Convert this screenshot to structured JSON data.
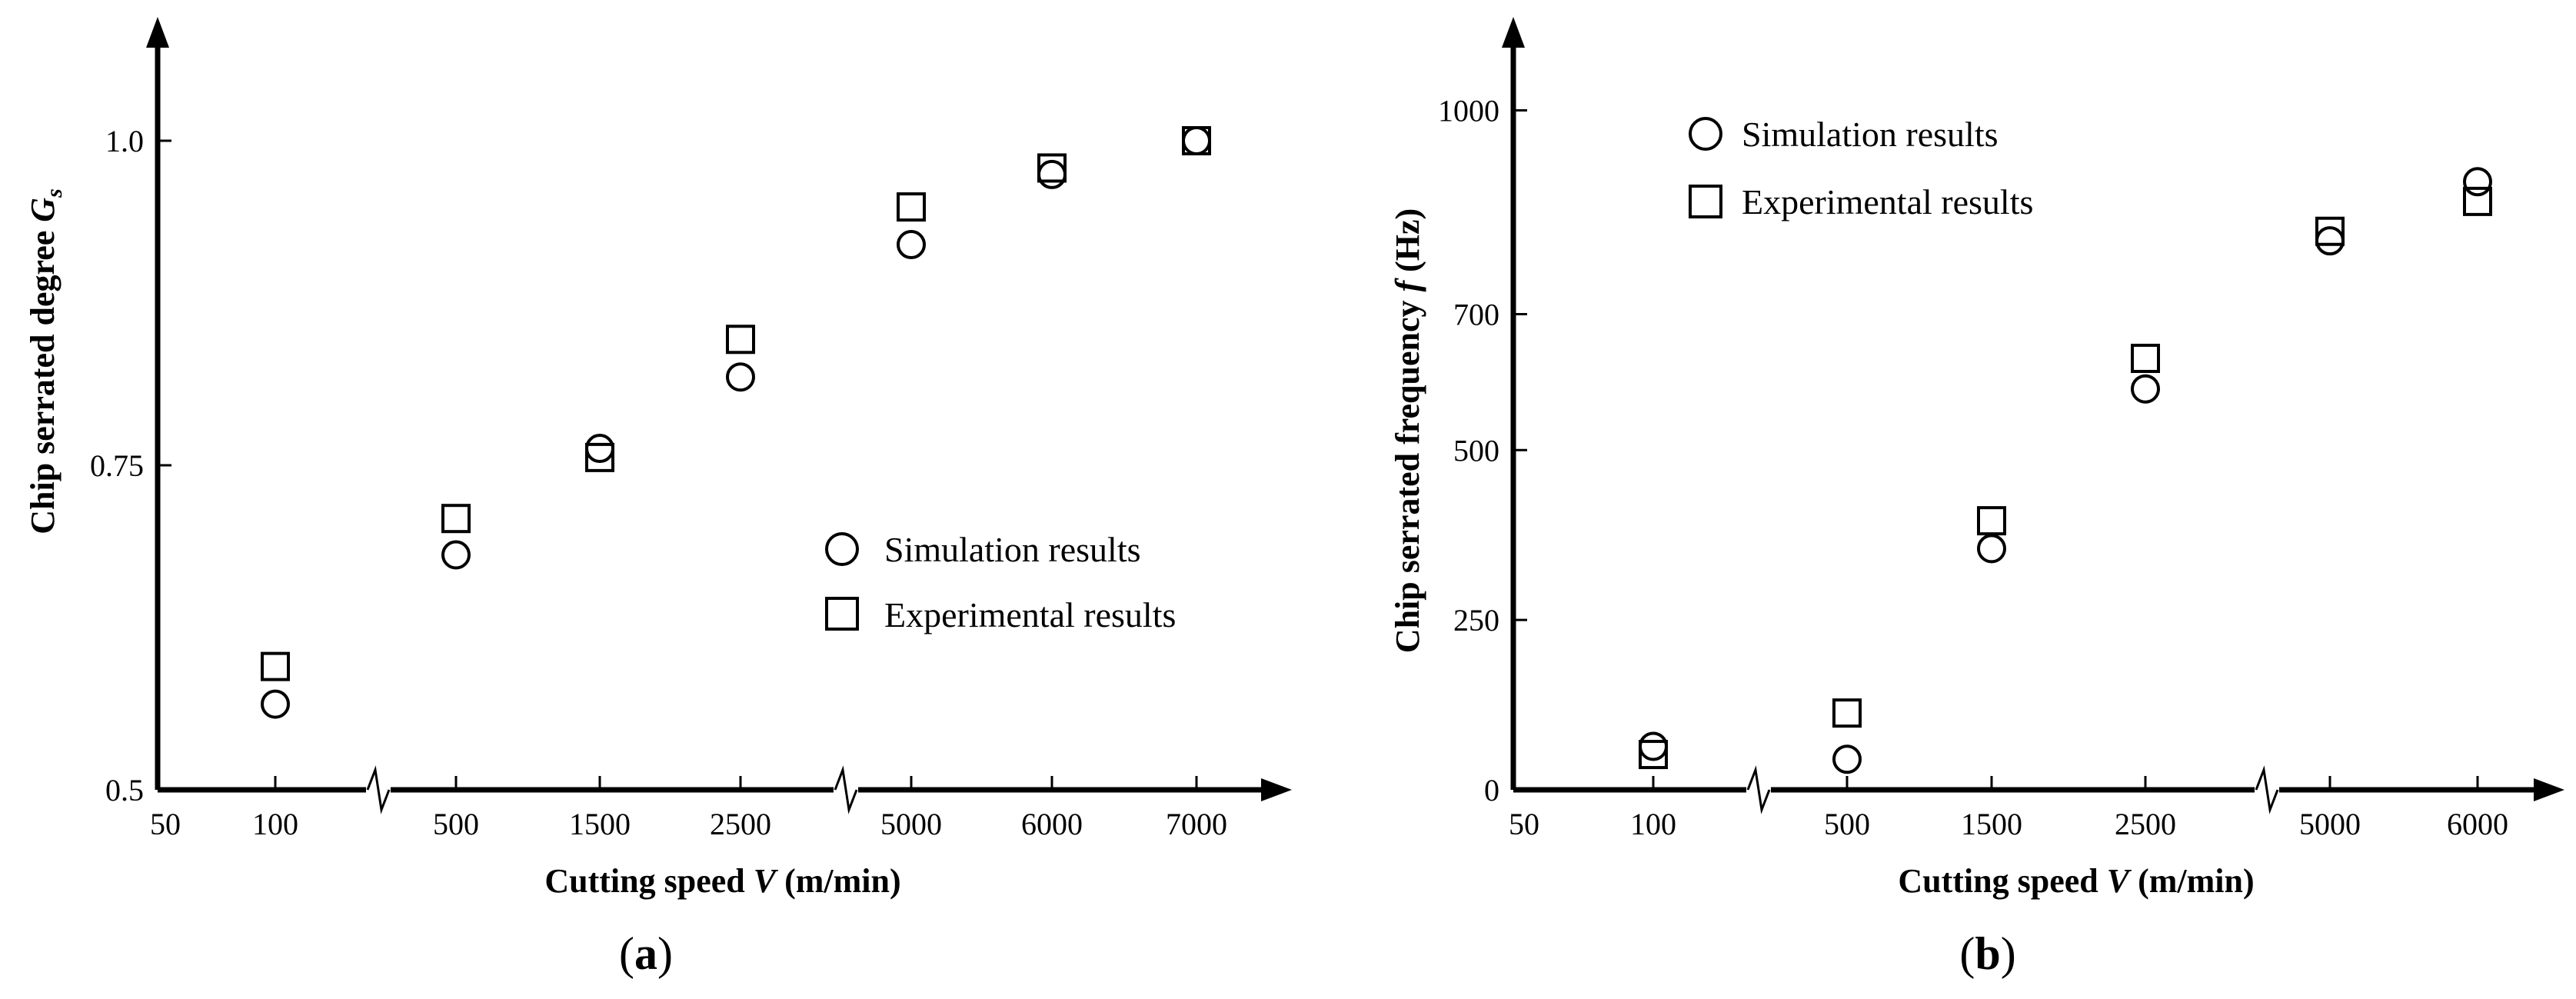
{
  "chart_data": [
    {
      "type": "scatter",
      "panel": "a",
      "xlabel": "Cutting speed",
      "xlabel_var": "V",
      "xlabel_unit": "(m/min)",
      "ylabel": "Chip serrated degree",
      "ylabel_var": "G",
      "ylabel_sub": "s",
      "x_ticks": [
        "50",
        "100",
        "500",
        "1500",
        "2500",
        "5000",
        "6000",
        "7000"
      ],
      "x_breaks_after": [
        "100",
        "2500"
      ],
      "y_ticks": [
        "0.5",
        "0.75",
        "1.0"
      ],
      "ylim": [
        0.5,
        1.05
      ],
      "legend_position": "center-right",
      "series": [
        {
          "name": "Simulation results",
          "marker": "circle",
          "x": [
            "100",
            "500",
            "1500",
            "2500",
            "5000",
            "6000",
            "7000"
          ],
          "values": [
            0.566,
            0.681,
            0.763,
            0.818,
            0.92,
            0.974,
            1.0
          ]
        },
        {
          "name": "Experimental results",
          "marker": "square",
          "x": [
            "100",
            "500",
            "1500",
            "2500",
            "5000",
            "6000",
            "7000"
          ],
          "values": [
            0.595,
            0.709,
            0.756,
            0.847,
            0.949,
            0.979,
            1.0
          ]
        }
      ]
    },
    {
      "type": "scatter",
      "panel": "b",
      "xlabel": "Cutting speed",
      "xlabel_var": "V",
      "xlabel_unit": "(m/min)",
      "ylabel": "Chip serrated frequency",
      "ylabel_var": "f",
      "ylabel_unit": "(Hz)",
      "x_ticks": [
        "50",
        "100",
        "500",
        "1500",
        "2500",
        "5000",
        "6000"
      ],
      "x_breaks_after": [
        "100",
        "2500"
      ],
      "y_ticks": [
        "0",
        "250",
        "500",
        "700",
        "1000"
      ],
      "ylim": [
        0,
        1100
      ],
      "legend_position": "top-left",
      "series": [
        {
          "name": "Simulation results",
          "marker": "circle",
          "x": [
            "100",
            "500",
            "1500",
            "2500",
            "5000",
            "6000"
          ],
          "values": [
            64,
            45,
            355,
            590,
            808,
            895
          ]
        },
        {
          "name": "Experimental results",
          "marker": "square",
          "x": [
            "100",
            "500",
            "1500",
            "2500",
            "5000",
            "6000"
          ],
          "values": [
            52,
            113,
            396,
            635,
            822,
            866
          ]
        }
      ]
    }
  ],
  "panel_labels": [
    "(a)",
    "(b)"
  ]
}
